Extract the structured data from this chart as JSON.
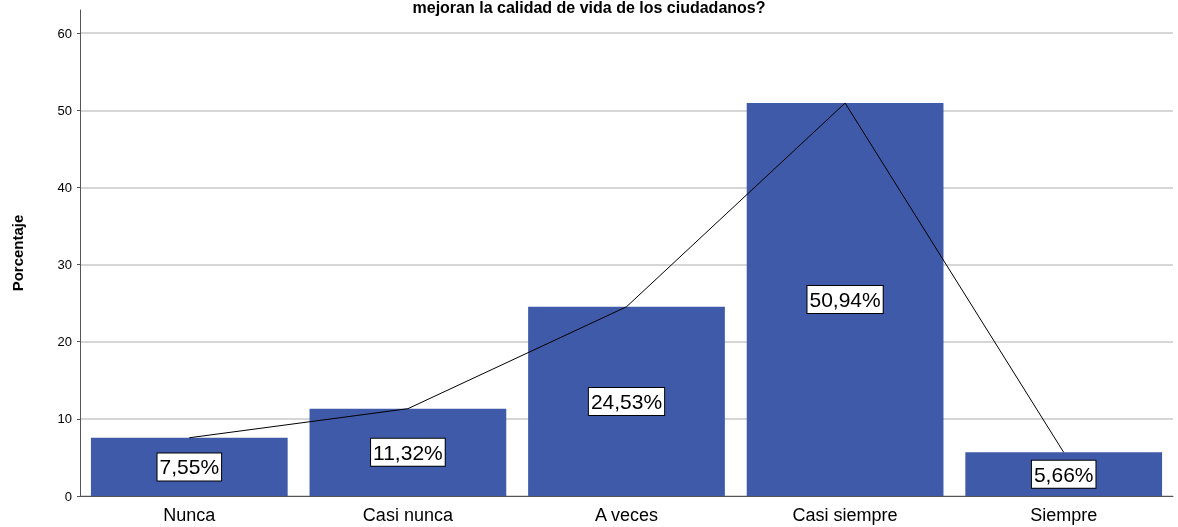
{
  "chart_data": {
    "type": "bar",
    "title": "mejoran la calidad de vida de los ciudadanos?",
    "ylabel": "Porcentaje",
    "categories": [
      "Nunca",
      "Casi nunca",
      "A veces",
      "Casi siempre",
      "Siempre"
    ],
    "series": [
      {
        "color": "#3f5aa8",
        "values": [
          7.55,
          11.32,
          24.53,
          50.94,
          5.66
        ],
        "value_labels": [
          "7,55%",
          "11,32%",
          "24,53%",
          "50,94%",
          "5,66%"
        ]
      },
      {
        "type": "line",
        "color": "#000000",
        "values": [
          7.55,
          11.32,
          24.53,
          50.94,
          5.66
        ]
      }
    ],
    "ylim": [
      0,
      63
    ],
    "yticks": [
      0,
      10,
      20,
      30,
      40,
      50,
      60
    ],
    "grid": "y",
    "marker": "none",
    "line_style": "solid"
  }
}
